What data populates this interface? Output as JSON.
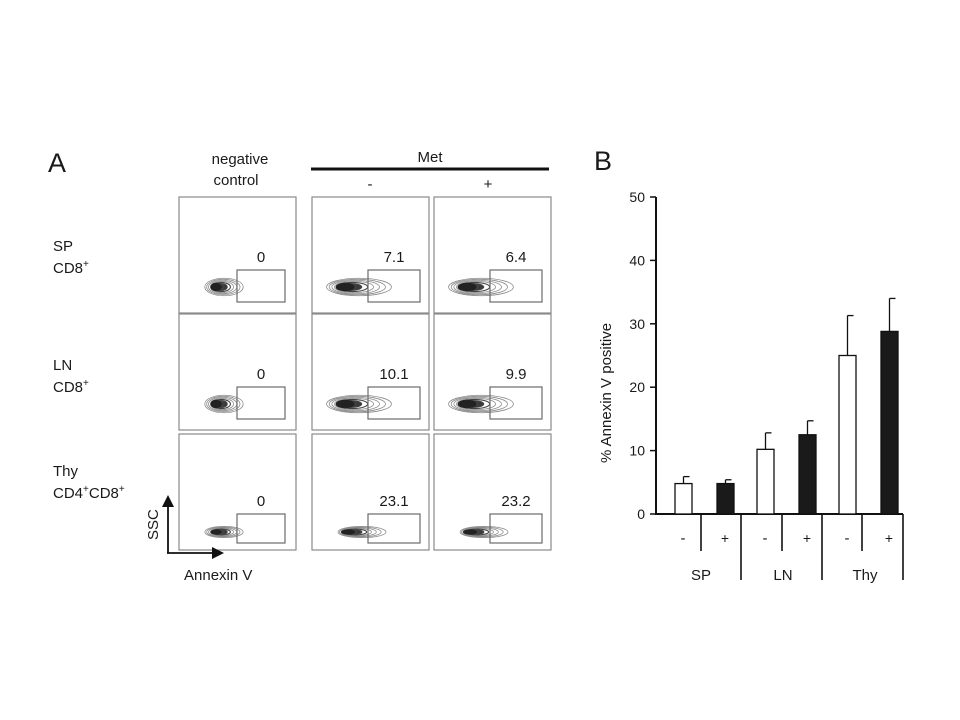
{
  "panel_a": {
    "letter": "A",
    "column_headers": [
      "negative\ncontrol",
      "-",
      "+"
    ],
    "met_label": "Met",
    "row_labels": [
      {
        "line1": "SP",
        "line2_base": "CD8",
        "line2_sup": "+"
      },
      {
        "line1": "LN",
        "line2_base": "CD8",
        "line2_sup": "+"
      },
      {
        "line1": "Thy",
        "line2_base": "CD4",
        "line2_sup": "+",
        "line2_base2": "CD8",
        "line2_sup2": "+"
      }
    ],
    "gate_values": [
      [
        "0",
        "7.1",
        "6.4"
      ],
      [
        "0",
        "10.1",
        "9.9"
      ],
      [
        "0",
        "23.1",
        "23.2"
      ]
    ],
    "y_axis_label": "SSC",
    "x_axis_label": "Annexin V"
  },
  "panel_b": {
    "letter": "B",
    "y_axis_label": "%  Annexin V positive",
    "ylim": [
      0,
      50
    ],
    "yticks": [
      0,
      10,
      20,
      30,
      40,
      50
    ],
    "groups": [
      "SP",
      "LN",
      "Thy"
    ],
    "treatment_labels": [
      "-",
      "+"
    ]
  },
  "chart_data": {
    "type": "bar",
    "title": "",
    "xlabel": "",
    "ylabel": "%  Annexin V positive",
    "ylim": [
      0,
      50
    ],
    "categories": [
      "SP",
      "LN",
      "Thy"
    ],
    "series": [
      {
        "name": "-",
        "values": [
          4.8,
          10.2,
          25.0
        ],
        "errors": [
          1.1,
          2.6,
          6.3
        ],
        "color": "#ffffff"
      },
      {
        "name": "+",
        "values": [
          4.8,
          12.5,
          28.8
        ],
        "errors": [
          0.6,
          2.2,
          5.2
        ],
        "color": "#1a1a1a"
      }
    ]
  }
}
